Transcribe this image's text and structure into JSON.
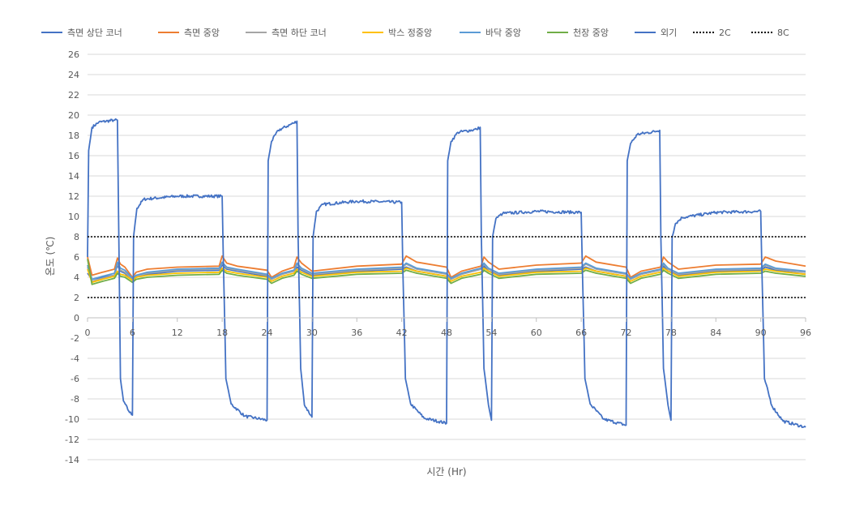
{
  "chart_data": {
    "type": "line",
    "title": "",
    "xlabel": "시간 (Hr)",
    "ylabel": "온도 (℃)",
    "xlim": [
      0,
      96
    ],
    "ylim": [
      -14,
      26
    ],
    "xticks": [
      0,
      6,
      12,
      18,
      24,
      30,
      36,
      42,
      48,
      54,
      60,
      66,
      72,
      78,
      84,
      90,
      96
    ],
    "yticks": [
      -14,
      -12,
      -10,
      -8,
      -6,
      -4,
      -2,
      0,
      2,
      4,
      6,
      8,
      10,
      12,
      14,
      16,
      18,
      20,
      22,
      24,
      26
    ],
    "grid": "horizontal",
    "legend_position": "top",
    "series": [
      {
        "name": "측면 상단 코너",
        "color": "#4472C4",
        "style": "solid",
        "x": [
          0,
          0.6,
          2,
          3.6,
          4,
          4.4,
          5,
          6,
          6.5,
          8,
          12,
          17.6,
          18,
          18.6,
          20,
          24,
          24.6,
          26,
          27.6,
          28,
          28.6,
          30,
          36,
          42,
          42.6,
          44,
          48,
          48.6,
          50,
          52.6,
          53,
          53.6,
          55,
          60,
          66,
          66.6,
          68,
          72,
          72.6,
          74,
          76.6,
          77,
          77.6,
          79,
          84,
          90,
          90.6,
          92,
          96
        ],
        "y": [
          4.4,
          3.8,
          4.0,
          4.2,
          5.2,
          4.6,
          4.4,
          3.7,
          4.0,
          4.3,
          4.6,
          4.7,
          5.2,
          4.8,
          4.6,
          4.1,
          3.8,
          4.3,
          4.6,
          5.0,
          4.7,
          4.2,
          4.6,
          4.8,
          5.0,
          4.6,
          4.1,
          3.8,
          4.3,
          4.8,
          5.1,
          4.6,
          4.2,
          4.6,
          4.8,
          5.0,
          4.6,
          4.1,
          3.8,
          4.3,
          4.7,
          5.1,
          4.6,
          4.2,
          4.6,
          4.7,
          5.0,
          4.7,
          4.3
        ]
      },
      {
        "name": "측면 중앙",
        "color": "#ED7D31",
        "style": "solid",
        "x": [
          0,
          0.6,
          2,
          3.6,
          4,
          4.4,
          5,
          6,
          6.5,
          8,
          12,
          17.6,
          18,
          18.6,
          20,
          24,
          24.6,
          26,
          27.6,
          28,
          28.6,
          30,
          36,
          42,
          42.6,
          44,
          48,
          48.6,
          50,
          52.6,
          53,
          53.6,
          55,
          60,
          66,
          66.6,
          68,
          72,
          72.6,
          74,
          76.6,
          77,
          77.6,
          79,
          84,
          90,
          90.6,
          92,
          96
        ],
        "y": [
          6.0,
          4.2,
          4.5,
          4.8,
          5.9,
          5.3,
          5.0,
          4.0,
          4.5,
          4.8,
          5.0,
          5.1,
          6.1,
          5.4,
          5.1,
          4.7,
          4.0,
          4.6,
          5.0,
          6.0,
          5.4,
          4.6,
          5.1,
          5.3,
          6.1,
          5.5,
          5.0,
          4.0,
          4.6,
          5.1,
          6.0,
          5.5,
          4.8,
          5.2,
          5.4,
          6.1,
          5.5,
          5.0,
          4.0,
          4.6,
          5.0,
          6.0,
          5.5,
          4.8,
          5.2,
          5.3,
          6.0,
          5.6,
          5.1
        ]
      },
      {
        "name": "측면 하단 코너",
        "color": "#A5A5A5",
        "style": "solid",
        "x": [
          0,
          0.6,
          2,
          3.6,
          4,
          4.4,
          5,
          6,
          6.5,
          8,
          12,
          17.6,
          18,
          18.6,
          20,
          24,
          24.6,
          26,
          27.6,
          28,
          28.6,
          30,
          36,
          42,
          42.6,
          44,
          48,
          48.6,
          50,
          52.6,
          53,
          53.6,
          55,
          60,
          66,
          66.6,
          68,
          72,
          72.6,
          74,
          76.6,
          77,
          77.6,
          79,
          84,
          90,
          90.6,
          92,
          96
        ],
        "y": [
          5.0,
          3.6,
          3.9,
          4.2,
          5.4,
          4.7,
          4.5,
          3.8,
          4.1,
          4.4,
          4.7,
          4.8,
          5.4,
          4.9,
          4.7,
          4.2,
          3.8,
          4.3,
          4.6,
          5.3,
          4.8,
          4.3,
          4.7,
          4.9,
          5.3,
          4.8,
          4.3,
          3.8,
          4.3,
          4.8,
          5.3,
          4.8,
          4.3,
          4.7,
          4.9,
          5.3,
          4.8,
          4.3,
          3.8,
          4.3,
          4.7,
          5.3,
          4.8,
          4.3,
          4.7,
          4.8,
          5.2,
          4.8,
          4.5
        ]
      },
      {
        "name": "박스 정중앙",
        "color": "#FFC000",
        "style": "solid",
        "x": [
          0,
          0.6,
          2,
          3.6,
          4,
          4.4,
          5,
          6,
          6.5,
          8,
          12,
          17.6,
          18,
          18.6,
          20,
          24,
          24.6,
          26,
          27.6,
          28,
          28.6,
          30,
          36,
          42,
          42.6,
          44,
          48,
          48.6,
          50,
          52.6,
          53,
          53.6,
          55,
          60,
          66,
          66.6,
          68,
          72,
          72.6,
          74,
          76.6,
          77,
          77.6,
          79,
          84,
          90,
          90.6,
          92,
          96
        ],
        "y": [
          4.8,
          3.5,
          3.8,
          4.1,
          4.6,
          4.3,
          4.2,
          3.7,
          4.0,
          4.2,
          4.4,
          4.5,
          4.9,
          4.6,
          4.4,
          4.0,
          3.6,
          4.1,
          4.4,
          4.8,
          4.5,
          4.1,
          4.5,
          4.6,
          4.9,
          4.6,
          4.1,
          3.6,
          4.1,
          4.5,
          4.9,
          4.6,
          4.1,
          4.5,
          4.6,
          4.9,
          4.6,
          4.1,
          3.6,
          4.1,
          4.5,
          4.9,
          4.6,
          4.1,
          4.5,
          4.6,
          4.8,
          4.6,
          4.3
        ]
      },
      {
        "name": "바닥 중앙",
        "color": "#5B9BD5",
        "style": "solid",
        "x": [
          0,
          0.6,
          2,
          3.6,
          4,
          4.4,
          5,
          6,
          6.5,
          8,
          12,
          17.6,
          18,
          18.6,
          20,
          24,
          24.6,
          26,
          27.6,
          28,
          28.6,
          30,
          36,
          42,
          42.6,
          44,
          48,
          48.6,
          50,
          52.6,
          53,
          53.6,
          55,
          60,
          66,
          66.6,
          68,
          72,
          72.6,
          74,
          76.6,
          77,
          77.6,
          79,
          84,
          90,
          90.6,
          92,
          96
        ],
        "y": [
          5.2,
          3.8,
          4.1,
          4.4,
          5.5,
          4.9,
          4.7,
          3.9,
          4.2,
          4.5,
          4.8,
          4.9,
          5.5,
          5.0,
          4.8,
          4.3,
          3.9,
          4.4,
          4.7,
          5.4,
          4.9,
          4.4,
          4.8,
          5.0,
          5.4,
          4.9,
          4.4,
          3.9,
          4.4,
          4.9,
          5.4,
          4.9,
          4.4,
          4.8,
          5.0,
          5.4,
          4.9,
          4.4,
          3.9,
          4.4,
          4.8,
          5.4,
          4.9,
          4.4,
          4.8,
          4.9,
          5.3,
          4.9,
          4.6
        ]
      },
      {
        "name": "천장 중앙",
        "color": "#70AD47",
        "style": "solid",
        "x": [
          0,
          0.6,
          2,
          3.6,
          4,
          4.4,
          5,
          6,
          6.5,
          8,
          12,
          17.6,
          18,
          18.6,
          20,
          24,
          24.6,
          26,
          27.6,
          28,
          28.6,
          30,
          36,
          42,
          42.6,
          44,
          48,
          48.6,
          50,
          52.6,
          53,
          53.6,
          55,
          60,
          66,
          66.6,
          68,
          72,
          72.6,
          74,
          76.6,
          77,
          77.6,
          79,
          84,
          90,
          90.6,
          92,
          96
        ],
        "y": [
          5.8,
          3.3,
          3.6,
          3.9,
          4.4,
          4.1,
          4.0,
          3.5,
          3.8,
          4.0,
          4.2,
          4.3,
          4.7,
          4.4,
          4.2,
          3.8,
          3.4,
          3.9,
          4.2,
          4.6,
          4.3,
          3.9,
          4.3,
          4.4,
          4.7,
          4.4,
          3.9,
          3.4,
          3.9,
          4.3,
          4.7,
          4.4,
          3.9,
          4.3,
          4.4,
          4.7,
          4.4,
          3.9,
          3.4,
          3.9,
          4.3,
          4.7,
          4.4,
          3.9,
          4.3,
          4.4,
          4.6,
          4.4,
          4.1
        ]
      },
      {
        "name": "외기",
        "color": "#4472C4",
        "style": "solid",
        "noisy": true,
        "x": [
          0,
          0.15,
          0.6,
          1.5,
          3.5,
          4,
          4.15,
          4.4,
          4.8,
          5.5,
          6,
          6.15,
          6.6,
          7.5,
          12,
          18,
          18.15,
          18.5,
          19.2,
          21,
          24,
          24.15,
          24.6,
          25.5,
          27.5,
          28,
          28.15,
          28.5,
          29,
          30,
          30.15,
          30.6,
          31.5,
          36,
          42,
          42.15,
          42.5,
          43.2,
          45,
          48,
          48.15,
          48.6,
          49.5,
          52,
          52.5,
          52.65,
          53,
          53.6,
          54,
          54.15,
          54.6,
          55.5,
          60,
          66,
          66.15,
          66.5,
          67.2,
          69,
          72,
          72.15,
          72.6,
          73.5,
          76,
          76.5,
          76.65,
          77,
          77.6,
          78,
          78.15,
          78.6,
          79.5,
          84,
          90,
          90.15,
          90.5,
          91.5,
          93,
          96
        ],
        "y": [
          6,
          16.5,
          18.8,
          19.3,
          19.5,
          19.5,
          10,
          -6,
          -8.2,
          -9.2,
          -9.6,
          8,
          10.8,
          11.7,
          12.0,
          12.0,
          6,
          -6,
          -8.5,
          -9.7,
          -10.1,
          15.5,
          17.4,
          18.5,
          19.2,
          19.4,
          8,
          -5,
          -8.6,
          -9.8,
          8,
          10.5,
          11.2,
          11.5,
          11.4,
          5,
          -6,
          -8.5,
          -9.9,
          -10.4,
          15.5,
          17.4,
          18.3,
          18.6,
          18.8,
          8,
          -5,
          -8.6,
          -10.1,
          8,
          9.8,
          10.3,
          10.5,
          10.4,
          5,
          -6,
          -8.5,
          -10.0,
          -10.6,
          15.5,
          17.2,
          18.1,
          18.4,
          18.5,
          8,
          -5,
          -8.6,
          -10.1,
          8,
          9.3,
          9.9,
          10.4,
          10.5,
          5,
          -6,
          -8.7,
          -10.2,
          -10.8
        ]
      },
      {
        "name": "2C",
        "color": "#000000",
        "style": "dotted",
        "x": [
          0,
          96
        ],
        "y": [
          2,
          2
        ]
      },
      {
        "name": "8C",
        "color": "#000000",
        "style": "dotted",
        "x": [
          0,
          96
        ],
        "y": [
          8,
          8
        ]
      }
    ]
  }
}
